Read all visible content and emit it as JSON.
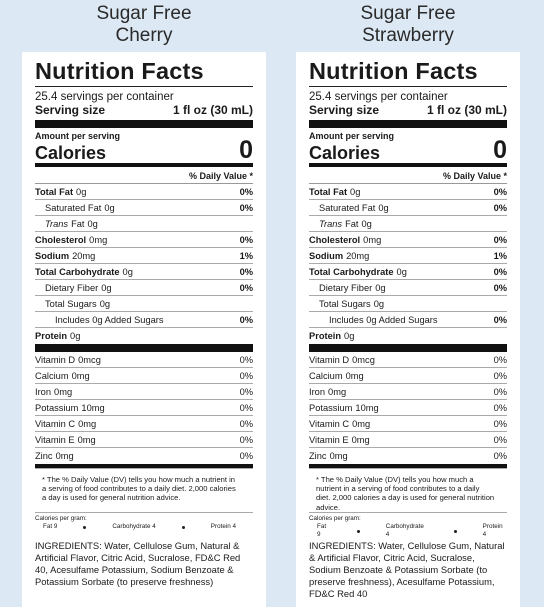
{
  "labels": [
    {
      "title": [
        "Sugar Free",
        "Cherry"
      ],
      "heading": "Nutrition Facts",
      "servings": "25.4 servings per container",
      "serving_size_label": "Serving size",
      "serving_size": "1 fl oz (30 mL)",
      "amount_per_serving": "Amount per serving",
      "calories_label": "Calories",
      "calories": 0,
      "dv_header": "% Daily Value *",
      "nutrients": [
        {
          "name": "Total Fat",
          "amount": "0g",
          "dv": "0%"
        },
        {
          "name": "Saturated Fat",
          "amount": "0g",
          "dv": "0%"
        },
        {
          "italic": "Trans",
          "name": "Fat",
          "amount": "0g"
        },
        {
          "name": "Cholesterol",
          "amount": "0mg",
          "dv": "0%"
        },
        {
          "name": "Sodium",
          "amount": "20mg",
          "dv": "1%"
        },
        {
          "name": "Total Carbohydrate",
          "amount": "0g",
          "dv": "0%"
        },
        {
          "name": "Dietary Fiber",
          "amount": "0g",
          "dv": "0%"
        },
        {
          "name": "Total Sugars",
          "amount": "0g"
        },
        {
          "name": "Includes 0g Added Sugars",
          "dv": "0%"
        },
        {
          "name": "Protein",
          "amount": "0g"
        }
      ],
      "vitamins": [
        {
          "name": "Vitamin D",
          "amount": "0mcg",
          "dv": "0%"
        },
        {
          "name": "Calcium",
          "amount": "0mg",
          "dv": "0%"
        },
        {
          "name": "Iron",
          "amount": "0mg",
          "dv": "0%"
        },
        {
          "name": "Potassium",
          "amount": "10mg",
          "dv": "0%"
        },
        {
          "name": "Vitamin C",
          "amount": "0mg",
          "dv": "0%"
        },
        {
          "name": "Vitamin E",
          "amount": "0mg",
          "dv": "0%"
        },
        {
          "name": "Zinc",
          "amount": "0mg",
          "dv": "0%"
        }
      ],
      "footnote": "* The % Daily Value (DV) tells you how much a nutrient in a serving of food contributes to a daily diet. 2,000 calories a day is used for general nutrition advice.",
      "calories_per_gram": {
        "label": "Calories per gram:",
        "items": [
          "Fat 9",
          "Carbohydrate 4",
          "Protein 4"
        ]
      },
      "ingredients": "INGREDIENTS: Water, Cellulose Gum, Natural & Artificial Flavor, Citric Acid, Sucralose, FD&C Red 40, Acesulfame Potassium, Sodium Benzoate & Potassium Sorbate (to preserve freshness)"
    },
    {
      "title": [
        "Sugar Free",
        "Strawberry"
      ],
      "heading": "Nutrition Facts",
      "servings": "25.4 servings per container",
      "serving_size_label": "Serving size",
      "serving_size": "1 fl oz (30 mL)",
      "amount_per_serving": "Amount per serving",
      "calories_label": "Calories",
      "calories": 0,
      "dv_header": "% Daily Value *",
      "nutrients": [
        {
          "name": "Total Fat",
          "amount": "0g",
          "dv": "0%"
        },
        {
          "name": "Saturated Fat",
          "amount": "0g",
          "dv": "0%"
        },
        {
          "italic": "Trans",
          "name": "Fat",
          "amount": "0g"
        },
        {
          "name": "Cholesterol",
          "amount": "0mg",
          "dv": "0%"
        },
        {
          "name": "Sodium",
          "amount": "20mg",
          "dv": "1%"
        },
        {
          "name": "Total Carbohydrate",
          "amount": "0g",
          "dv": "0%"
        },
        {
          "name": "Dietary Fiber",
          "amount": "0g",
          "dv": "0%"
        },
        {
          "name": "Total Sugars",
          "amount": "0g"
        },
        {
          "name": "Includes 0g Added Sugars",
          "dv": "0%"
        },
        {
          "name": "Protein",
          "amount": "0g"
        }
      ],
      "vitamins": [
        {
          "name": "Vitamin D",
          "amount": "0mcg",
          "dv": "0%"
        },
        {
          "name": "Calcium",
          "amount": "0mg",
          "dv": "0%"
        },
        {
          "name": "Iron",
          "amount": "0mg",
          "dv": "0%"
        },
        {
          "name": "Potassium",
          "amount": "10mg",
          "dv": "0%"
        },
        {
          "name": "Vitamin C",
          "amount": "0mg",
          "dv": "0%"
        },
        {
          "name": "Vitamin E",
          "amount": "0mg",
          "dv": "0%"
        },
        {
          "name": "Zinc",
          "amount": "0mg",
          "dv": "0%"
        }
      ],
      "footnote": "* The % Daily Value (DV) tells you how much a nutrient in a serving of food contributes to a daily diet. 2,000 calories a day is used for general nutrition advice.",
      "calories_per_gram": {
        "label": "Calories per gram:",
        "items": [
          "Fat 9",
          "Carbohydrate 4",
          "Protein 4"
        ]
      },
      "ingredients": "INGREDIENTS: Water, Cellulose Gum, Natural & Artificial Flavor, Citric Acid, Sucralose, Sodium Benzoate & Potassium Sorbate (to preserve freshness), Acesulfame Potassium, FD&C Red 40"
    }
  ]
}
